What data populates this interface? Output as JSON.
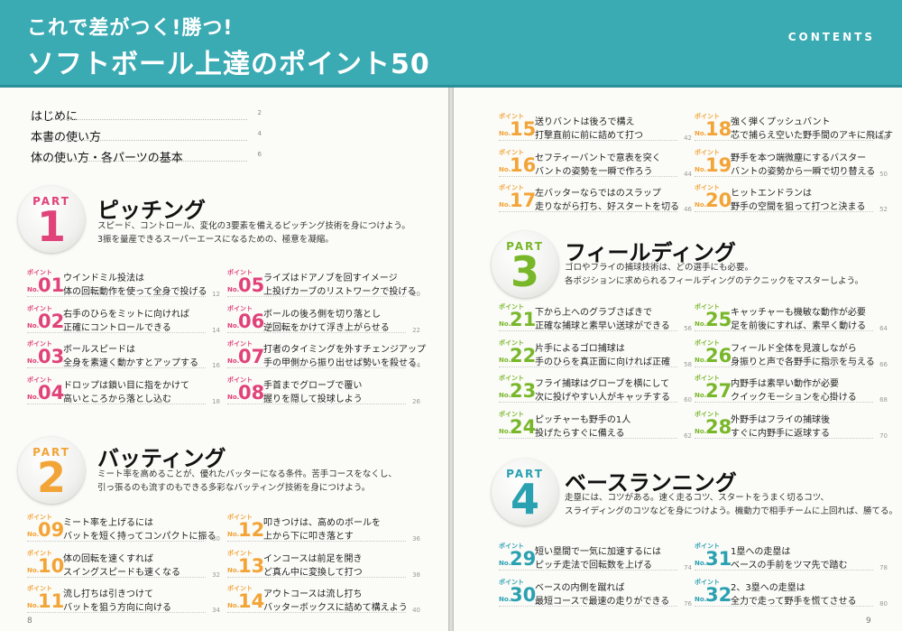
{
  "header": {
    "title_line1": "これで差がつく!勝つ!",
    "title_line2": "ソフトボール上達のポイント50",
    "contents_label": "CONTENTS"
  },
  "intro": [
    {
      "label": "はじめに",
      "page": "2"
    },
    {
      "label": "本書の使い方",
      "page": "4"
    },
    {
      "label": "体の使い方・各パーツの基本",
      "page": "6"
    }
  ],
  "parts": [
    {
      "part_word": "PART",
      "number": "1",
      "title": "ピッチング",
      "color": "#e0427a",
      "desc": [
        "スピード、コントロール、変化の3要素を備えるピッチング技術を身につけよう。",
        "3振を量産できるスーパーエースになるための、極意を凝縮。"
      ],
      "items": [
        {
          "label": "ポイント",
          "no_label": "No.",
          "no": "01",
          "line1": "ウインドミル投法は",
          "line2": "体の回転動作を使って全身で投げる",
          "page": "12"
        },
        {
          "label": "ポイント",
          "no_label": "No.",
          "no": "02",
          "line1": "右手のひらをミットに向ければ",
          "line2": "正確にコントロールできる",
          "page": "14"
        },
        {
          "label": "ポイント",
          "no_label": "No.",
          "no": "03",
          "line1": "ボールスピードは",
          "line2": "全身を素速く動かすとアップする",
          "page": "16"
        },
        {
          "label": "ポイント",
          "no_label": "No.",
          "no": "04",
          "line1": "ドロップは鎖い目に指をかけて",
          "line2": "高いところから落とし込む",
          "page": "18"
        },
        {
          "label": "ポイント",
          "no_label": "No.",
          "no": "05",
          "line1": "ライズはドアノブを回すイメージ",
          "line2": "上投げカーブのリストワークで投げる",
          "page": "20"
        },
        {
          "label": "ポイント",
          "no_label": "No.",
          "no": "06",
          "line1": "ボールの後ろ側を切り落とし",
          "line2": "逆回転をかけて浮き上がらせる",
          "page": "22"
        },
        {
          "label": "ポイント",
          "no_label": "No.",
          "no": "07",
          "line1": "打者のタイミングを外すチェンジアップ",
          "line2": "手の甲側から振り出せば勢いを殺せる",
          "page": "24"
        },
        {
          "label": "ポイント",
          "no_label": "No.",
          "no": "08",
          "line1": "手首までグローブで覆い",
          "line2": "握りを隠して投球しよう",
          "page": "26"
        }
      ]
    },
    {
      "part_word": "PART",
      "number": "2",
      "title": "バッティング",
      "color": "#f2a437",
      "desc": [
        "ミート率を高めることが、優れたバッターになる条件。苦手コースをなくし、",
        "引っ張るのも流すのもできる多彩なバッティング技術を身につけよう。"
      ],
      "items": [
        {
          "label": "ポイント",
          "no_label": "No.",
          "no": "09",
          "line1": "ミート率を上げるには",
          "line2": "バットを短く持ってコンパクトに振る",
          "page": "30"
        },
        {
          "label": "ポイント",
          "no_label": "No.",
          "no": "10",
          "line1": "体の回転を速くすれば",
          "line2": "スイングスピードも速くなる",
          "page": "32"
        },
        {
          "label": "ポイント",
          "no_label": "No.",
          "no": "11",
          "line1": "流し打ちは引きつけて",
          "line2": "バットを狙う方向に向ける",
          "page": "34"
        },
        {
          "label": "ポイント",
          "no_label": "No.",
          "no": "12",
          "line1": "叩きつけは、高めのボールを",
          "line2": "上から下に叩き落とす",
          "page": "36"
        },
        {
          "label": "ポイント",
          "no_label": "No.",
          "no": "13",
          "line1": "インコースは前足を開き",
          "line2": "ど真ん中に変換して打つ",
          "page": "38"
        },
        {
          "label": "ポイント",
          "no_label": "No.",
          "no": "14",
          "line1": "アウトコースは流し打ち",
          "line2": "バッターボックスに詰めて構えよう",
          "page": "40"
        }
      ]
    },
    {
      "part_word": "PART",
      "number": "3",
      "title": "フィールディング",
      "color": "#79b72a",
      "desc": [
        "ゴロやフライの捕球技術は、どの選手にも必要。",
        "各ポジションに求められるフィールディングのテクニックをマスターしよう。"
      ],
      "items": [
        {
          "label": "ポイント",
          "no_label": "No.",
          "no": "21",
          "line1": "下から上へのグラブさばきで",
          "line2": "正確な捕球と素早い送球ができる",
          "page": "56"
        },
        {
          "label": "ポイント",
          "no_label": "No.",
          "no": "22",
          "line1": "片手によるゴロ捕球は",
          "line2": "手のひらを真正面に向ければ正確",
          "page": "58"
        },
        {
          "label": "ポイント",
          "no_label": "No.",
          "no": "23",
          "line1": "フライ捕球はグローブを横にして",
          "line2": "次に投げやすい人がキャッチする",
          "page": "60"
        },
        {
          "label": "ポイント",
          "no_label": "No.",
          "no": "24",
          "line1": "ピッチャーも野手の1人",
          "line2": "投げたらすぐに備える",
          "page": "62"
        },
        {
          "label": "ポイント",
          "no_label": "No.",
          "no": "25",
          "line1": "キャッチャーも機敏な動作が必要",
          "line2": "足を前後にすれば、素早く動ける",
          "page": "64"
        },
        {
          "label": "ポイント",
          "no_label": "No.",
          "no": "26",
          "line1": "フィールド全体を見渡しながら",
          "line2": "身振りと声で各野手に指示を与える",
          "page": "66"
        },
        {
          "label": "ポイント",
          "no_label": "No.",
          "no": "27",
          "line1": "内野手は素早い動作が必要",
          "line2": "クイックモーションを心掛ける",
          "page": "68"
        },
        {
          "label": "ポイント",
          "no_label": "No.",
          "no": "28",
          "line1": "外野手はフライの捕球後",
          "line2": "すぐに内野手に返球する",
          "page": "70"
        }
      ]
    },
    {
      "part_word": "PART",
      "number": "4",
      "title": "ベースランニング",
      "color": "#2aa1b1",
      "desc": [
        "走塁には、コツがある。速く走るコツ、スタートをうまく切るコツ、",
        "スライディングのコツなどを身につけよう。機動力で相手チームに上回れば、勝てる。"
      ],
      "items": [
        {
          "label": "ポイント",
          "no_label": "No.",
          "no": "29",
          "line1": "短い塁間で一気に加速するには",
          "line2": "ピッチ走法で回転数を上げる",
          "page": "74"
        },
        {
          "label": "ポイント",
          "no_label": "No.",
          "no": "30",
          "line1": "ベースの内側を蹴れば",
          "line2": "最短コースで最速の走りができる",
          "page": "76"
        },
        {
          "label": "ポイント",
          "no_label": "No.",
          "no": "31",
          "line1": "1塁への走塁は",
          "line2": "ベースの手前をツマ先で踏む",
          "page": "78"
        },
        {
          "label": "ポイント",
          "no_label": "No.",
          "no": "32",
          "line1": "2、3塁への走塁は",
          "line2": "全力で走って野手を慌てさせる",
          "page": "80"
        }
      ]
    }
  ],
  "continued_items": [
    {
      "label": "ポイント",
      "no_label": "No.",
      "no": "15",
      "line1": "送りバントは後ろで構え",
      "line2": "打撃直前に前に詰めて打つ",
      "page": "42"
    },
    {
      "label": "ポイント",
      "no_label": "No.",
      "no": "16",
      "line1": "セフティーバントで意表を突く",
      "line2": "バントの姿勢を一瞬で作ろう",
      "page": "44"
    },
    {
      "label": "ポイント",
      "no_label": "No.",
      "no": "17",
      "line1": "左バッターならではのスラップ",
      "line2": "走りながら打ち、好スタートを切る",
      "page": "46"
    },
    {
      "label": "ポイント",
      "no_label": "No.",
      "no": "18",
      "line1": "強く弾くプッシュバント",
      "line2": "芯で捕らえ空いた野手間のアキに飛ばす",
      "page": "48"
    },
    {
      "label": "ポイント",
      "no_label": "No.",
      "no": "19",
      "line1": "野手を本つ端微塵にするバスター",
      "line2": "バントの姿勢から一瞬で切り替える",
      "page": "50"
    },
    {
      "label": "ポイント",
      "no_label": "No.",
      "no": "20",
      "line1": "ヒットエンドランは",
      "line2": "野手の空間を狙って打つと決まる",
      "page": "52"
    }
  ],
  "folios": {
    "left": "8",
    "right": "9"
  }
}
